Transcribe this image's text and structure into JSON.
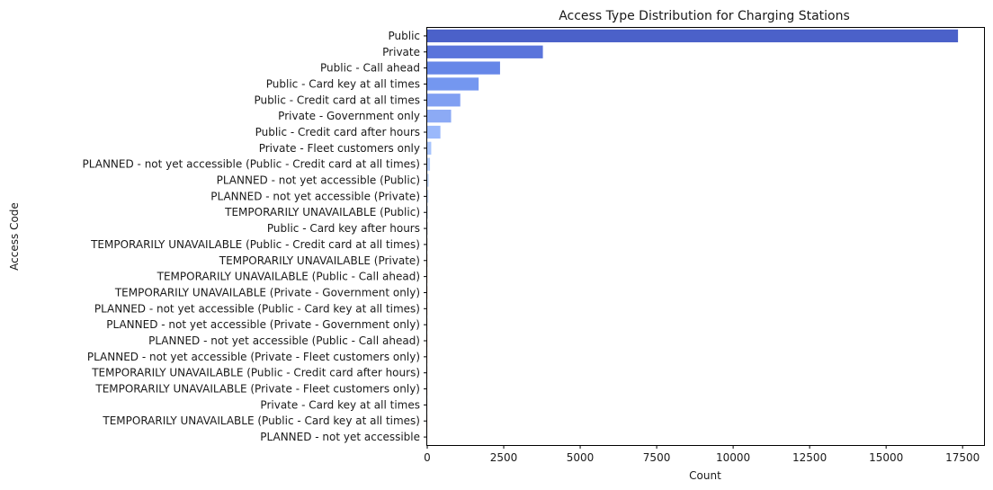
{
  "chart_data": {
    "type": "bar",
    "orientation": "horizontal",
    "title": "Access Type Distribution for Charging Stations",
    "xlabel": "Count",
    "ylabel": "Access Code",
    "xlim": [
      0,
      18200
    ],
    "xticks": [
      0,
      2500,
      5000,
      7500,
      10000,
      12500,
      15000,
      17500
    ],
    "grid": false,
    "palette": "coolwarm",
    "categories": [
      "Public",
      "Private",
      "Public - Call ahead",
      "Public - Card key at all times",
      "Public - Credit card at all times",
      "Private - Government only",
      "Public - Credit card after hours",
      "Private - Fleet customers only",
      "PLANNED - not yet accessible (Public - Credit card at all times)",
      "PLANNED - not yet accessible (Public)",
      "PLANNED - not yet accessible (Private)",
      "TEMPORARILY UNAVAILABLE (Public)",
      "Public - Card key after hours",
      "TEMPORARILY UNAVAILABLE (Public - Credit card at all times)",
      "TEMPORARILY UNAVAILABLE (Private)",
      "TEMPORARILY UNAVAILABLE (Public - Call ahead)",
      "TEMPORARILY UNAVAILABLE (Private - Government only)",
      "PLANNED - not yet accessible (Public - Card key at all times)",
      "PLANNED - not yet accessible (Private - Government only)",
      "PLANNED - not yet accessible (Public - Call ahead)",
      "PLANNED - not yet accessible (Private - Fleet customers only)",
      "TEMPORARILY UNAVAILABLE (Public - Credit card after hours)",
      "TEMPORARILY UNAVAILABLE (Private - Fleet customers only)",
      "Private - Card key at all times",
      "TEMPORARILY UNAVAILABLE (Public - Card key at all times)",
      "PLANNED - not yet accessible"
    ],
    "values": [
      17350,
      3780,
      2380,
      1680,
      1080,
      780,
      430,
      130,
      90,
      50,
      40,
      30,
      25,
      20,
      15,
      12,
      10,
      8,
      6,
      5,
      4,
      3,
      3,
      2,
      2,
      1
    ],
    "colors": [
      "#4b61c9",
      "#5a74db",
      "#6687e8",
      "#7497f0",
      "#809ff2",
      "#8caaf5",
      "#9ab8fb",
      "#a7c4fd",
      "#b3cdfb",
      "#bed4f6",
      "#c8d8f0",
      "#d1dbe8",
      "#dadce0",
      "#e2dad4",
      "#e9d5c8",
      "#eecfbd",
      "#f2c8b0",
      "#f4bfa3",
      "#f5b597",
      "#f5aa89",
      "#f39f7c",
      "#ef926f",
      "#ea8562",
      "#e27557",
      "#d9644c",
      "#cf5443"
    ]
  }
}
